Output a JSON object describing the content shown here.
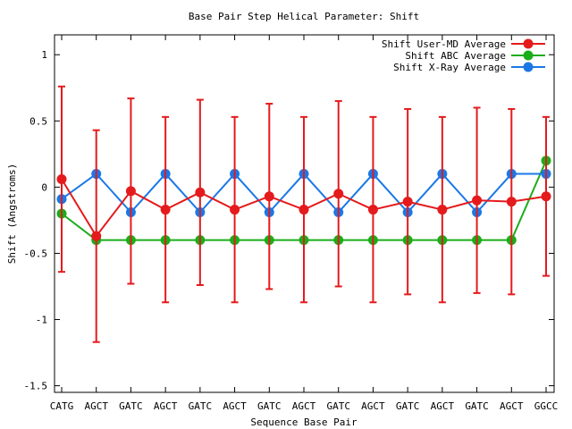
{
  "chart_data": {
    "type": "line",
    "title": "Base Pair Step Helical Parameter: Shift",
    "xlabel": "Sequence Base Pair",
    "ylabel": "Shift (Angstroms)",
    "ylim": [
      -1.55,
      1.15
    ],
    "yticks": [
      {
        "value": 1,
        "label": "1"
      },
      {
        "value": 0.5,
        "label": "0.5"
      },
      {
        "value": 0,
        "label": "0"
      },
      {
        "value": -0.5,
        "label": "-0.5"
      },
      {
        "value": -1,
        "label": "-1"
      },
      {
        "value": -1.5,
        "label": "-1.5"
      }
    ],
    "categories": [
      "CATG",
      "AGCT",
      "GATC",
      "AGCT",
      "GATC",
      "AGCT",
      "GATC",
      "AGCT",
      "GATC",
      "AGCT",
      "GATC",
      "AGCT",
      "GATC",
      "AGCT",
      "GGCC"
    ],
    "grid": false,
    "legend_position": "top-right",
    "series": [
      {
        "name": "Shift User-MD Average",
        "color": "#e41a1c",
        "values": [
          0.06,
          -0.37,
          -0.03,
          -0.17,
          -0.04,
          -0.17,
          -0.07,
          -0.17,
          -0.05,
          -0.17,
          -0.11,
          -0.17,
          -0.1,
          -0.11,
          -0.07
        ],
        "error": [
          0.7,
          0.8,
          0.7,
          0.7,
          0.7,
          0.7,
          0.7,
          0.7,
          0.7,
          0.7,
          0.7,
          0.7,
          0.7,
          0.7,
          0.6
        ]
      },
      {
        "name": "Shift ABC Average",
        "color": "#1aad1a",
        "values": [
          -0.2,
          -0.4,
          -0.4,
          -0.4,
          -0.4,
          -0.4,
          -0.4,
          -0.4,
          -0.4,
          -0.4,
          -0.4,
          -0.4,
          -0.4,
          -0.4,
          0.2
        ]
      },
      {
        "name": "Shift X-Ray Average",
        "color": "#1a78e6",
        "values": [
          -0.09,
          0.1,
          -0.19,
          0.1,
          -0.19,
          0.1,
          -0.19,
          0.1,
          -0.19,
          0.1,
          -0.19,
          0.1,
          -0.19,
          0.1,
          0.1
        ]
      }
    ]
  }
}
